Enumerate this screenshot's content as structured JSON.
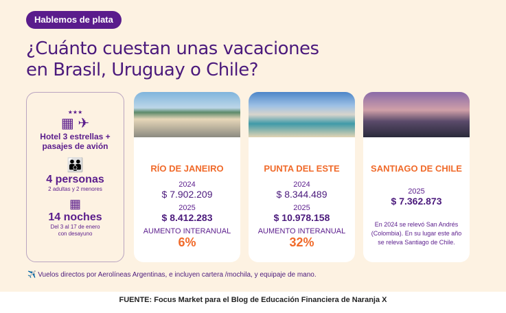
{
  "badge": "Hablemos de plata",
  "title_line1": "¿Cuánto cuestan unas vacaciones",
  "title_line2": "en Brasil, Uruguay o Chile?",
  "info": {
    "hotel": "Hotel 3 estrellas +",
    "hotel2": "pasajes de avión",
    "people": "4 personas",
    "people_sub": "2 adultas y 2 menores",
    "nights": "14 noches",
    "nights_sub1": "Del 3 al 17 de enero",
    "nights_sub2": "con desayuno",
    "stars": "★★★"
  },
  "cards": [
    {
      "city": "RÍO DE JANEIRO",
      "y1": "2024",
      "p1": "$ 7.902.209",
      "y2": "2025",
      "p2": "$ 8.412.283",
      "label": "AUMENTO INTERANUAL",
      "pct": "6%"
    },
    {
      "city": "PUNTA DEL ESTE",
      "y1": "2024",
      "p1": "$ 8.344.489",
      "y2": "2025",
      "p2": "$ 10.978.158",
      "label": "AUMENTO INTERANUAL",
      "pct": "32%"
    },
    {
      "city": "SANTIAGO DE CHILE",
      "y2": "2025",
      "p2": "$ 7.362.873",
      "note": "En 2024 se relevó San Andrés (Colombia). En su lugar este año se releva Santiago de Chile."
    }
  ],
  "footnote": "✈️ Vuelos directos por Aerolíneas Argentinas, e incluyen cartera /mochila, y equipaje de mano.",
  "caption": "FUENTE: Focus Market para el Blog de Educación Financiera de Naranja X"
}
